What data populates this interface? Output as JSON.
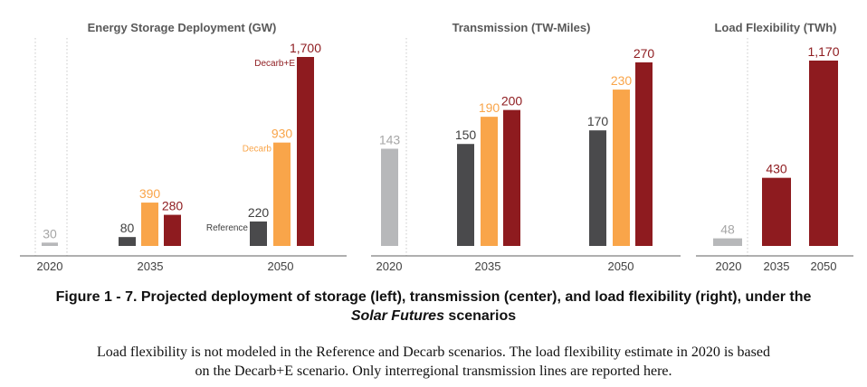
{
  "colors": {
    "reference": "#4a4a4c",
    "decarb": "#f9a54a",
    "decarb_e": "#8e1b1f",
    "baseline": "#b7b8ba",
    "title": "#595959",
    "axis": "#7f7f7f"
  },
  "chart_data": [
    {
      "type": "bar",
      "title": "Energy Storage Deployment (GW)",
      "categories": [
        "2020",
        "2035",
        "2050"
      ],
      "ylim": [
        0,
        1700
      ],
      "grid": false,
      "series": [
        {
          "name": "Reference",
          "values": [
            null,
            80,
            220
          ]
        },
        {
          "name": "Decarb",
          "values": [
            null,
            390,
            930
          ]
        },
        {
          "name": "Decarb+E",
          "values": [
            null,
            280,
            1700
          ]
        }
      ],
      "baseline_2020": 30,
      "value_labels": {
        "2020": [
          "30"
        ],
        "2035": [
          "80",
          "390",
          "280"
        ],
        "2050": [
          "220",
          "930",
          "1,700"
        ]
      },
      "inline_series_labels": [
        "Reference",
        "Decarb",
        "Decarb+E"
      ]
    },
    {
      "type": "bar",
      "title": "Transmission (TW-Miles)",
      "categories": [
        "2020",
        "2035",
        "2050"
      ],
      "ylim": [
        0,
        270
      ],
      "grid": false,
      "series": [
        {
          "name": "Reference",
          "values": [
            null,
            150,
            170
          ]
        },
        {
          "name": "Decarb",
          "values": [
            null,
            190,
            230
          ]
        },
        {
          "name": "Decarb+E",
          "values": [
            null,
            200,
            270
          ]
        }
      ],
      "baseline_2020": 143,
      "value_labels": {
        "2020": [
          "143"
        ],
        "2035": [
          "150",
          "190",
          "200"
        ],
        "2050": [
          "170",
          "230",
          "270"
        ]
      }
    },
    {
      "type": "bar",
      "title": "Load Flexibility (TWh)",
      "categories": [
        "2020",
        "2035",
        "2050"
      ],
      "ylim": [
        0,
        1170
      ],
      "grid": false,
      "series": [
        {
          "name": "Decarb+E",
          "values": [
            null,
            430,
            1170
          ]
        }
      ],
      "baseline_2020": 48,
      "value_labels": {
        "2020": [
          "48"
        ],
        "2035": [
          "430"
        ],
        "2050": [
          "1,170"
        ]
      }
    }
  ],
  "caption": {
    "line1": "Figure 1 - 7. Projected deployment of storage (left), transmission (center), and load flexibility (right), under the",
    "line2_italic": "Solar Futures",
    "line2_rest": " scenarios"
  },
  "note": {
    "line1": "Load flexibility is not modeled in the Reference and Decarb scenarios. The load flexibility estimate in 2020 is based",
    "line2": "on the Decarb+E scenario. Only interregional transmission lines are reported here."
  }
}
